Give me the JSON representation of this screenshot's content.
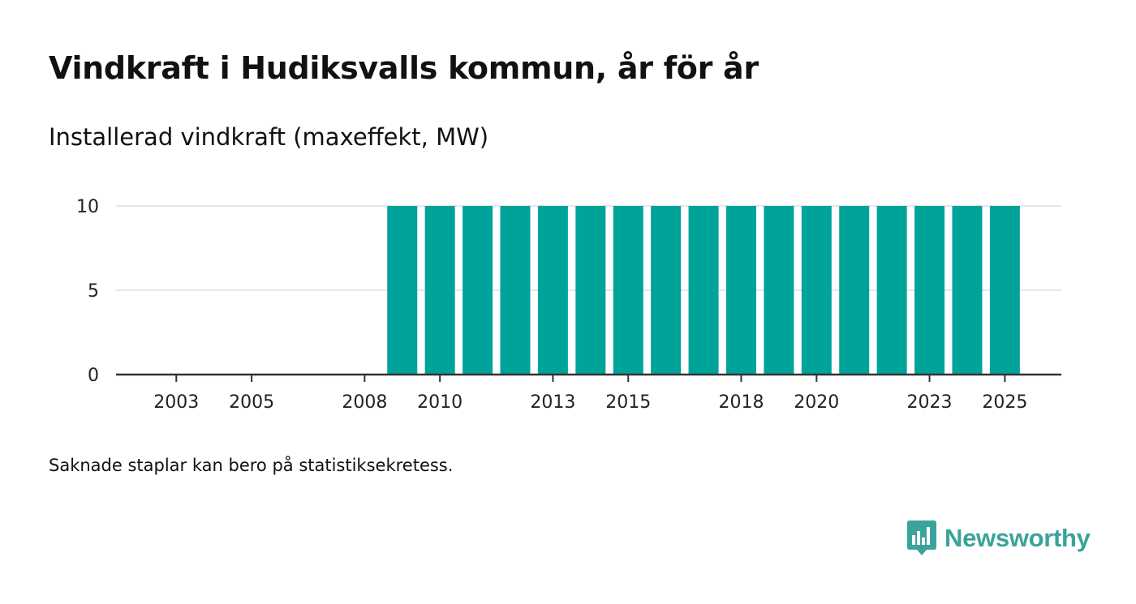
{
  "colors": {
    "bar": "#00a39a",
    "grid": "#dddddd",
    "axis": "#333333",
    "brand": "#3aa39a"
  },
  "footnote": "Saknade staplar kan bero på statistiksekretess.",
  "brand": {
    "name": "Newsworthy",
    "icon": "bar-chart-speech-bubble-icon"
  },
  "chart_data": {
    "type": "bar",
    "title": "Vindkraft i Hudiksvalls kommun, år för år",
    "subtitle": "Installerad vindkraft (maxeffekt, MW)",
    "xlabel": "",
    "ylabel": "Installerad vindkraft (maxeffekt, MW)",
    "ylim": [
      0,
      10
    ],
    "yticks": [
      0,
      5,
      10
    ],
    "xlim": [
      2001.4,
      2026.5
    ],
    "xticks": [
      2003,
      2005,
      2008,
      2010,
      2013,
      2015,
      2018,
      2020,
      2023,
      2025
    ],
    "grid": true,
    "categories": [
      "2009",
      "2010",
      "2011",
      "2012",
      "2013",
      "2014",
      "2015",
      "2016",
      "2017",
      "2018",
      "2019",
      "2020",
      "2021",
      "2022",
      "2023",
      "2024",
      "2025"
    ],
    "values": [
      10,
      10,
      10,
      10,
      10,
      10,
      10,
      10,
      10,
      10,
      10,
      10,
      10,
      10,
      10,
      10,
      10
    ]
  }
}
